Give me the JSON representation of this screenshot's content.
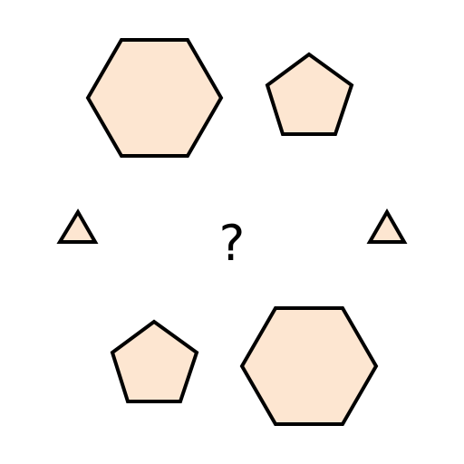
{
  "puzzle": {
    "question_mark": "?",
    "colors": {
      "fill": "#fde6d1",
      "stroke": "#000000",
      "text": "#000000",
      "background": "#ffffff"
    },
    "shapes": [
      {
        "name": "hexagon-large-top-left",
        "type": "hexagon"
      },
      {
        "name": "pentagon-top-right",
        "type": "pentagon"
      },
      {
        "name": "triangle-left",
        "type": "triangle"
      },
      {
        "name": "triangle-right",
        "type": "triangle"
      },
      {
        "name": "pentagon-bottom-left",
        "type": "pentagon"
      },
      {
        "name": "hexagon-large-bottom-right",
        "type": "hexagon"
      }
    ]
  }
}
